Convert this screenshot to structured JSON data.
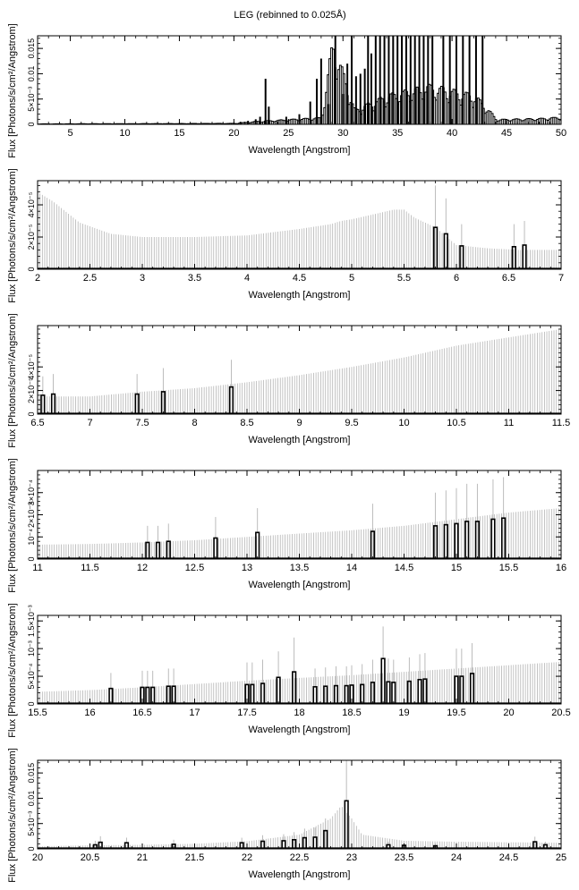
{
  "title": "LEG (rebinned to 0.025Å)",
  "colors": {
    "data": "#000000",
    "error": "#b4b4b4",
    "axis": "#000000"
  },
  "chart_data": [
    {
      "type": "histogram",
      "xlabel": "Wavelength [Angstrom]",
      "ylabel": "Flux [Photons/s/cm²/Angstrom]",
      "xlim": [
        2,
        50
      ],
      "ylim": [
        0,
        0.0175
      ],
      "xticks": [
        5,
        10,
        15,
        20,
        25,
        30,
        35,
        40,
        45,
        50
      ],
      "xticklabels": [
        "5",
        "10",
        "15",
        "20",
        "25",
        "30",
        "35",
        "40",
        "45",
        "50"
      ],
      "yticks": [
        0,
        0.005,
        0.01,
        0.015
      ],
      "yticklabels": [
        "0",
        "5×10⁻³",
        "0.01",
        "0.015"
      ],
      "series": [
        {
          "kind": "continuum",
          "x": [
            2,
            20,
            21,
            22,
            25,
            28,
            29,
            31,
            34,
            38,
            42,
            43.3,
            44,
            48,
            50
          ],
          "y": [
            0.0001,
            0.0002,
            0.0004,
            0.0006,
            0.001,
            0.0014,
            0.0175,
            0.003,
            0.006,
            0.008,
            0.006,
            0.003,
            0.001,
            0.0012,
            0.0015
          ]
        },
        {
          "kind": "lines",
          "x": [
            20.6,
            21.3,
            22.0,
            22.4,
            22.9,
            23.2,
            24.8,
            26.0,
            27.0,
            27.6,
            28.0,
            28.7,
            29.3,
            30.0,
            30.4,
            30.8,
            31.2,
            31.6,
            32.0,
            32.3,
            32.6,
            33.0,
            33.4,
            33.8,
            34.2,
            34.6,
            35.0,
            35.4,
            35.8,
            36.2,
            36.6,
            37.0,
            37.4,
            37.8,
            38.2,
            39.2,
            39.8,
            40.4,
            41.0,
            41.6,
            42.2,
            42.8
          ],
          "y": [
            0.0005,
            0.0007,
            0.001,
            0.0015,
            0.009,
            0.0035,
            0.0015,
            0.002,
            0.0045,
            0.009,
            0.013,
            0.004,
            0.0175,
            0.006,
            0.012,
            0.0175,
            0.0095,
            0.01,
            0.011,
            0.0175,
            0.014,
            0.0175,
            0.0175,
            0.0175,
            0.0175,
            0.0175,
            0.0175,
            0.0175,
            0.0175,
            0.0175,
            0.0175,
            0.0175,
            0.0175,
            0.0175,
            0.0175,
            0.0175,
            0.0175,
            0.0175,
            0.0175,
            0.0175,
            0.0175,
            0.0175
          ]
        }
      ]
    },
    {
      "type": "histogram",
      "xlabel": "Wavelength [Angstrom]",
      "ylabel": "Flux [Photons/s/cm²/Angstrom]",
      "xlim": [
        2,
        7
      ],
      "ylim": [
        0,
        5.5e-05
      ],
      "xticks": [
        2,
        2.5,
        3,
        3.5,
        4,
        4.5,
        5,
        5.5,
        6,
        6.5,
        7
      ],
      "xticklabels": [
        "2",
        "2.5",
        "3",
        "3.5",
        "4",
        "4.5",
        "5",
        "5.5",
        "6",
        "6.5",
        "7"
      ],
      "yticks": [
        0,
        2e-05,
        4e-05
      ],
      "yticklabels": [
        "0",
        "2×10⁻⁵",
        "4×10⁻⁵"
      ],
      "series": [
        {
          "kind": "error",
          "x": [
            2,
            2.15,
            2.4,
            2.7,
            3.0,
            3.5,
            4.0,
            4.5,
            4.8,
            4.9,
            5.0,
            5.4,
            5.5,
            5.6,
            5.8,
            6.0,
            6.3,
            6.6,
            7
          ],
          "y": [
            4.8e-05,
            4.2e-05,
            2.9e-05,
            2.2e-05,
            2e-05,
            2e-05,
            2.1e-05,
            2.5e-05,
            2.8e-05,
            3e-05,
            3.1e-05,
            3.7e-05,
            3.7e-05,
            3.2e-05,
            2.6e-05,
            1.5e-05,
            1.3e-05,
            1.2e-05,
            1.2e-05
          ]
        },
        {
          "kind": "bars",
          "x": [
            5.8,
            5.9,
            6.05,
            6.55,
            6.65
          ],
          "y": [
            2.6e-05,
            2.2e-05,
            1.45e-05,
            1.4e-05,
            1.5e-05
          ],
          "err": [
            5.2e-05,
            4.4e-05,
            2.8e-05,
            2.8e-05,
            3e-05
          ]
        }
      ]
    },
    {
      "type": "histogram",
      "xlabel": "Wavelength [Angstrom]",
      "ylabel": "Flux [Photons/s/cm²/Angstrom]",
      "xlim": [
        6.5,
        11.5
      ],
      "ylim": [
        0,
        7.5e-05
      ],
      "xticks": [
        6.5,
        7,
        7.5,
        8,
        8.5,
        9,
        9.5,
        10,
        10.5,
        11,
        11.5
      ],
      "xticklabels": [
        "6.5",
        "7",
        "7.5",
        "8",
        "8.5",
        "9",
        "9.5",
        "10",
        "10.5",
        "11",
        "11.5"
      ],
      "yticks": [
        0,
        2e-05,
        4e-05
      ],
      "yticklabels": [
        "0",
        "2×10⁻⁵",
        "4×10⁻⁵"
      ],
      "series": [
        {
          "kind": "error",
          "x": [
            6.5,
            7.0,
            7.5,
            8.0,
            8.5,
            9.0,
            9.5,
            10.0,
            10.5,
            11.0,
            11.5
          ],
          "y": [
            1.5e-05,
            1.5e-05,
            1.9e-05,
            2.2e-05,
            2.7e-05,
            3.3e-05,
            4e-05,
            4.8e-05,
            5.8e-05,
            6.5e-05,
            7.2e-05
          ]
        },
        {
          "kind": "bars",
          "x": [
            6.55,
            6.65,
            7.45,
            7.7,
            8.35
          ],
          "y": [
            1.6e-05,
            1.7e-05,
            1.7e-05,
            1.9e-05,
            2.3e-05
          ],
          "err": [
            3.2e-05,
            3.4e-05,
            3.4e-05,
            3.9e-05,
            4.6e-05
          ]
        }
      ]
    },
    {
      "type": "histogram",
      "xlabel": "Wavelength [Angstrom]",
      "ylabel": "Flux [Photons/s/cm²/Angstrom]",
      "xlim": [
        11,
        16
      ],
      "ylim": [
        0,
        0.0004
      ],
      "xticks": [
        11,
        11.5,
        12,
        12.5,
        13,
        13.5,
        14,
        14.5,
        15,
        15.5,
        16
      ],
      "xticklabels": [
        "11",
        "11.5",
        "12",
        "12.5",
        "13",
        "13.5",
        "14",
        "14.5",
        "15",
        "15.5",
        "16"
      ],
      "yticks": [
        0,
        0.0001,
        0.0002,
        0.0003
      ],
      "yticklabels": [
        "0",
        "10⁻⁴",
        "2×10⁻⁴",
        "3×10⁻⁴"
      ],
      "series": [
        {
          "kind": "error",
          "x": [
            11,
            11.5,
            12,
            12.5,
            13,
            13.5,
            14,
            14.5,
            15,
            15.5,
            16
          ],
          "y": [
            6.5e-05,
            6.8e-05,
            7.5e-05,
            8.5e-05,
            0.0001,
            0.000115,
            0.00013,
            0.00015,
            0.00018,
            0.00021,
            0.00023
          ]
        },
        {
          "kind": "bars",
          "x": [
            12.05,
            12.15,
            12.25,
            12.7,
            13.1,
            14.2,
            14.8,
            14.9,
            15.0,
            15.1,
            15.2,
            15.35,
            15.45
          ],
          "y": [
            7.5e-05,
            7.5e-05,
            8e-05,
            9.5e-05,
            0.00012,
            0.000125,
            0.00015,
            0.000155,
            0.00016,
            0.00017,
            0.00017,
            0.00018,
            0.000185
          ],
          "err": [
            0.00015,
            0.00015,
            0.00016,
            0.00019,
            0.00023,
            0.00025,
            0.0003,
            0.00031,
            0.00032,
            0.00034,
            0.00034,
            0.00036,
            0.00037
          ]
        }
      ]
    },
    {
      "type": "histogram",
      "xlabel": "Wavelength [Angstrom]",
      "ylabel": "Flux [Photons/s/cm²/Angstrom]",
      "xlim": [
        15.5,
        20.5
      ],
      "ylim": [
        0,
        0.0016
      ],
      "xticks": [
        15.5,
        16,
        16.5,
        17,
        17.5,
        18,
        18.5,
        19,
        19.5,
        20,
        20.5
      ],
      "xticklabels": [
        "15.5",
        "16",
        "16.5",
        "17",
        "17.5",
        "18",
        "18.5",
        "19",
        "19.5",
        "20",
        "20.5"
      ],
      "yticks": [
        0,
        0.0005,
        0.001,
        0.0015
      ],
      "yticklabels": [
        "0",
        "5×10⁻⁴",
        "10⁻³",
        "1.5×10⁻³"
      ],
      "series": [
        {
          "kind": "error",
          "x": [
            15.5,
            16,
            16.5,
            17,
            17.5,
            18,
            18.5,
            19,
            19.5,
            20,
            20.5
          ],
          "y": [
            0.00022,
            0.00025,
            0.0003,
            0.00036,
            0.00042,
            0.00047,
            0.00052,
            0.00058,
            0.00064,
            0.0007,
            0.00076
          ]
        },
        {
          "kind": "bars",
          "x": [
            16.2,
            16.5,
            16.55,
            16.6,
            16.75,
            16.8,
            17.5,
            17.55,
            17.65,
            17.8,
            17.95,
            18.15,
            18.25,
            18.35,
            18.45,
            18.5,
            18.6,
            18.7,
            18.8,
            18.85,
            18.9,
            19.05,
            19.15,
            19.2,
            19.5,
            19.55,
            19.65
          ],
          "y": [
            0.00028,
            0.0003,
            0.0003,
            0.0003,
            0.00032,
            0.00032,
            0.00035,
            0.00035,
            0.00037,
            0.00048,
            0.00058,
            0.00031,
            0.00032,
            0.00033,
            0.00033,
            0.00034,
            0.00035,
            0.00039,
            0.00082,
            0.0004,
            0.00039,
            0.00041,
            0.00044,
            0.00045,
            0.0005,
            0.0005,
            0.00055
          ],
          "err": [
            0.00056,
            0.0006,
            0.0006,
            0.0006,
            0.00064,
            0.00064,
            0.00075,
            0.00075,
            0.0008,
            0.00095,
            0.0012,
            0.00064,
            0.00066,
            0.00068,
            0.00068,
            0.0007,
            0.00072,
            0.0008,
            0.0014,
            0.00082,
            0.0008,
            0.00084,
            0.0009,
            0.00092,
            0.001,
            0.001,
            0.0011
          ]
        }
      ]
    },
    {
      "type": "histogram",
      "xlabel": "Wavelength [Angstrom]",
      "ylabel": "Flux [Photons/s/cm²/Angstrom]",
      "xlim": [
        20,
        25
      ],
      "ylim": [
        0,
        0.0175
      ],
      "xticks": [
        20,
        20.5,
        21,
        21.5,
        22,
        22.5,
        23,
        23.5,
        24,
        24.5,
        25
      ],
      "xticklabels": [
        "20",
        "20.5",
        "21",
        "21.5",
        "22",
        "22.5",
        "23",
        "23.5",
        "24",
        "24.5",
        "25"
      ],
      "yticks": [
        0,
        0.005,
        0.01,
        0.015
      ],
      "yticklabels": [
        "0",
        "5×10⁻³",
        "0.01",
        "0.015"
      ],
      "series": [
        {
          "kind": "error",
          "x": [
            20,
            20.5,
            21,
            21.5,
            22,
            22.5,
            22.8,
            22.9,
            23.0,
            23.1,
            23.5,
            24,
            24.5,
            25
          ],
          "y": [
            0.0005,
            0.0007,
            0.0008,
            0.001,
            0.0015,
            0.0028,
            0.006,
            0.0085,
            0.006,
            0.0028,
            0.0016,
            0.0014,
            0.0013,
            0.0012
          ]
        },
        {
          "kind": "bars",
          "x": [
            20.55,
            20.6,
            20.85,
            21.3,
            21.95,
            22.15,
            22.35,
            22.45,
            22.55,
            22.65,
            22.75,
            22.95,
            23.35,
            23.5,
            23.8,
            24.75,
            24.85
          ],
          "y": [
            0.0008,
            0.0013,
            0.0012,
            0.0009,
            0.0012,
            0.0015,
            0.0016,
            0.0018,
            0.0022,
            0.0023,
            0.0036,
            0.0095,
            0.0008,
            0.0007,
            0.0006,
            0.0014,
            0.0008
          ],
          "err": [
            0.0016,
            0.0025,
            0.0022,
            0.0018,
            0.0022,
            0.0027,
            0.0029,
            0.0033,
            0.004,
            0.0042,
            0.006,
            0.018,
            0.0014,
            0.0013,
            0.0011,
            0.0024,
            0.0014
          ]
        }
      ]
    }
  ]
}
